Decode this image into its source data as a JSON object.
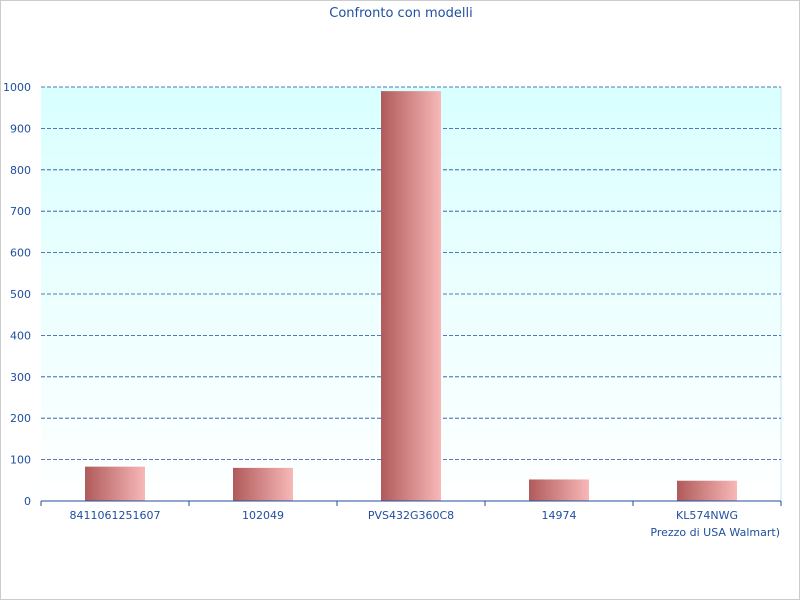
{
  "chart_data": {
    "type": "bar",
    "title": "Confronto con modelli",
    "xlabel": "Prezzo di USA Walmart)",
    "ylabel": "",
    "categories": [
      "8411061251607",
      "102049",
      "PVS432G360C8",
      "14974",
      "KL574NWG"
    ],
    "values": [
      83,
      80,
      990,
      52,
      49
    ],
    "ylim": [
      0,
      1000
    ],
    "yticks": [
      "0",
      "100",
      "200",
      "300",
      "400",
      "500",
      "600",
      "700",
      "800",
      "900",
      "1000"
    ],
    "grid": true,
    "legend": "none"
  },
  "colors": {
    "text": "#1f4e9e",
    "grid": "#1f4e9e",
    "plot_bg_top": "#d9ffff",
    "plot_bg_bottom": "#ffffff",
    "bar_dark": "#b05a5a",
    "bar_light": "#f8b8b8"
  }
}
